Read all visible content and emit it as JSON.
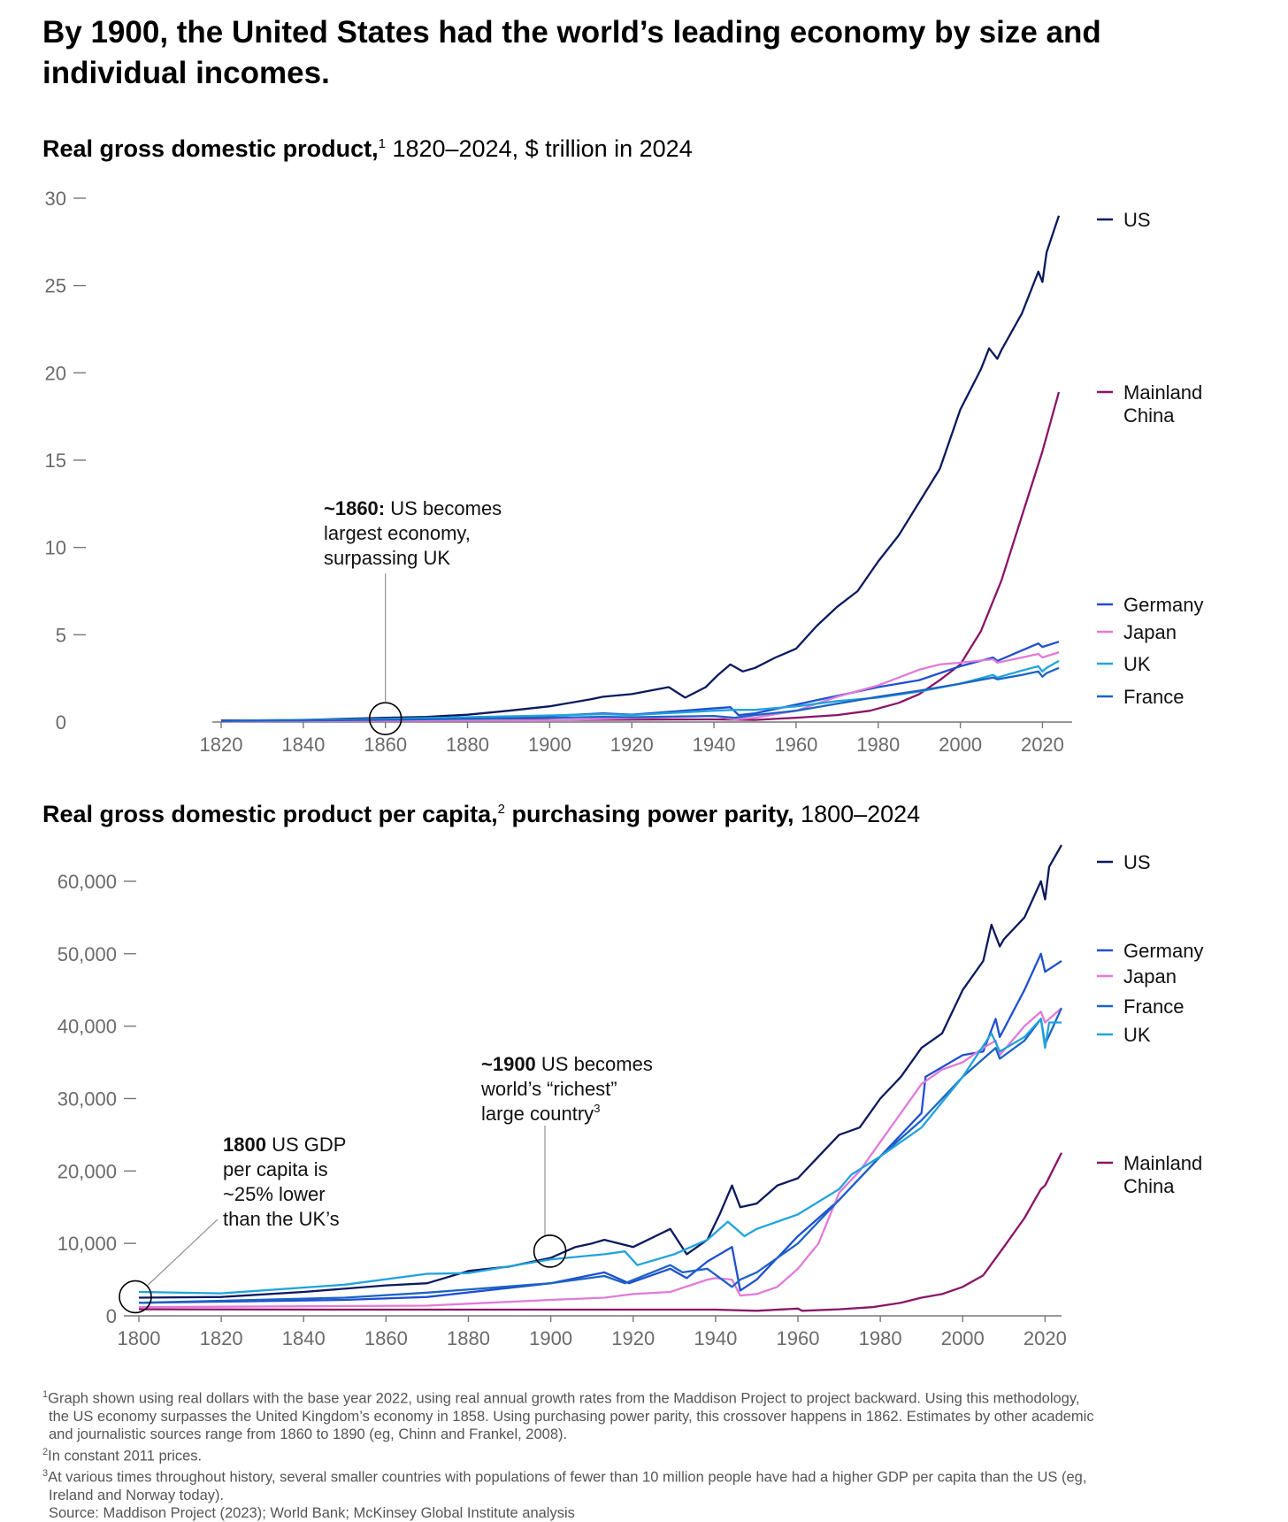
{
  "headline": "By 1900, the United States had the world’s leading economy by size and individual incomes.",
  "colors": {
    "US": "#0b1a5e",
    "Mainland China": "#8a1468",
    "Germany": "#1f4fd1",
    "Japan": "#e27ad9",
    "UK": "#21a3dc",
    "France": "#1b64c4"
  },
  "charts": {
    "gdp": {
      "title_bold": "Real gross domestic product,",
      "title_sup": "1",
      "title_rest": " 1820–2024, $ trillion in 2024"
    },
    "per_capita": {
      "title_bold": "Real gross domestic product per capita,",
      "title_sup": "2",
      "title_bold2": " purchasing power parity,",
      "title_rest": " 1800–2024"
    }
  },
  "chart_data": [
    {
      "type": "line",
      "xlim": [
        1820,
        2024
      ],
      "ylim": [
        0,
        30
      ],
      "x_ticks": [
        1820,
        1840,
        1860,
        1880,
        1900,
        1920,
        1940,
        1960,
        1980,
        2000,
        2020
      ],
      "y_ticks": [
        0,
        5,
        10,
        15,
        20,
        25,
        30
      ],
      "y_tick_labels": [
        "0",
        "5",
        "10",
        "15",
        "20",
        "25",
        "30"
      ],
      "annotation": {
        "bold": "~1860:",
        "text": [
          " US becomes",
          "largest economy,",
          "surpassing UK"
        ],
        "x": 1860,
        "y": 0.1
      },
      "series": [
        {
          "name": "US",
          "label_lines": [
            "US"
          ],
          "x": [
            1820,
            1840,
            1860,
            1870,
            1880,
            1890,
            1900,
            1910,
            1913,
            1920,
            1929,
            1933,
            1938,
            1941,
            1944,
            1947,
            1950,
            1955,
            1960,
            1965,
            1970,
            1975,
            1980,
            1985,
            1990,
            1995,
            2000,
            2005,
            2007,
            2009,
            2010,
            2015,
            2019,
            2020,
            2021,
            2024
          ],
          "y": [
            0.06,
            0.12,
            0.25,
            0.3,
            0.42,
            0.65,
            0.9,
            1.3,
            1.45,
            1.6,
            2.0,
            1.4,
            2.0,
            2.7,
            3.3,
            2.9,
            3.1,
            3.7,
            4.2,
            5.5,
            6.6,
            7.5,
            9.2,
            10.7,
            12.6,
            14.5,
            17.9,
            20.2,
            21.4,
            20.8,
            21.3,
            23.4,
            25.8,
            25.2,
            26.9,
            29.0
          ]
        },
        {
          "name": "Mainland China",
          "label_lines": [
            "Mainland",
            "China"
          ],
          "x": [
            1820,
            1850,
            1900,
            1940,
            1950,
            1960,
            1970,
            1978,
            1985,
            1990,
            1995,
            2000,
            2005,
            2010,
            2015,
            2020,
            2024
          ],
          "y": [
            0.1,
            0.1,
            0.12,
            0.15,
            0.12,
            0.25,
            0.4,
            0.65,
            1.1,
            1.6,
            2.4,
            3.3,
            5.2,
            8.1,
            11.8,
            15.5,
            18.9
          ]
        },
        {
          "name": "Germany",
          "label_lines": [
            "Germany"
          ],
          "x": [
            1820,
            1860,
            1900,
            1913,
            1920,
            1938,
            1944,
            1946,
            1950,
            1960,
            1970,
            1980,
            1990,
            2000,
            2008,
            2009,
            2015,
            2019,
            2020,
            2024
          ],
          "y": [
            0.05,
            0.12,
            0.35,
            0.5,
            0.42,
            0.75,
            0.85,
            0.4,
            0.5,
            1.0,
            1.5,
            2.0,
            2.4,
            3.2,
            3.7,
            3.5,
            4.1,
            4.5,
            4.3,
            4.6
          ]
        },
        {
          "name": "Japan",
          "label_lines": [
            "Japan"
          ],
          "x": [
            1820,
            1900,
            1940,
            1945,
            1950,
            1960,
            1970,
            1980,
            1990,
            1995,
            2000,
            2008,
            2009,
            2015,
            2019,
            2020,
            2024
          ],
          "y": [
            0.04,
            0.1,
            0.35,
            0.15,
            0.25,
            0.65,
            1.45,
            2.1,
            3.0,
            3.3,
            3.4,
            3.6,
            3.4,
            3.7,
            3.9,
            3.7,
            4.0
          ]
        },
        {
          "name": "UK",
          "label_lines": [
            "UK"
          ],
          "x": [
            1820,
            1860,
            1900,
            1913,
            1920,
            1940,
            1945,
            1950,
            1960,
            1970,
            1980,
            1990,
            2000,
            2008,
            2009,
            2015,
            2019,
            2020,
            2021,
            2024
          ],
          "y": [
            0.07,
            0.18,
            0.38,
            0.45,
            0.4,
            0.65,
            0.7,
            0.7,
            0.9,
            1.2,
            1.4,
            1.75,
            2.2,
            2.7,
            2.55,
            2.95,
            3.2,
            2.9,
            3.1,
            3.5
          ]
        },
        {
          "name": "France",
          "label_lines": [
            "France"
          ],
          "x": [
            1820,
            1860,
            1900,
            1913,
            1920,
            1940,
            1945,
            1950,
            1960,
            1970,
            1980,
            1990,
            2000,
            2008,
            2009,
            2015,
            2019,
            2020,
            2021,
            2024
          ],
          "y": [
            0.06,
            0.13,
            0.25,
            0.3,
            0.28,
            0.35,
            0.25,
            0.4,
            0.65,
            1.05,
            1.45,
            1.8,
            2.2,
            2.55,
            2.45,
            2.7,
            2.9,
            2.6,
            2.8,
            3.1
          ]
        }
      ]
    },
    {
      "type": "line",
      "xlim": [
        1800,
        2024
      ],
      "ylim": [
        0,
        65000
      ],
      "x_ticks": [
        1800,
        1820,
        1840,
        1860,
        1880,
        1900,
        1920,
        1940,
        1960,
        1980,
        2000,
        2020
      ],
      "y_ticks": [
        0,
        10000,
        20000,
        30000,
        40000,
        50000,
        60000
      ],
      "y_tick_labels": [
        "0",
        "10,000",
        "20,000",
        "30,000",
        "40,000",
        "50,000",
        "60,000"
      ],
      "annotations": [
        {
          "bold": "1800",
          "text": [
            " US GDP",
            "per capita is",
            "~25% lower",
            "than the UK’s"
          ],
          "x": 1800,
          "y": 3000
        },
        {
          "bold": "~1900",
          "text": [
            " US becomes",
            "world’s “richest”",
            "large country"
          ],
          "sup": "3",
          "x": 1900,
          "y": 8800
        }
      ],
      "series": [
        {
          "name": "US",
          "label_lines": [
            "US"
          ],
          "x": [
            1800,
            1820,
            1840,
            1860,
            1870,
            1880,
            1890,
            1900,
            1906,
            1910,
            1913,
            1920,
            1929,
            1933,
            1938,
            1941,
            1944,
            1946,
            1950,
            1955,
            1960,
            1965,
            1970,
            1975,
            1980,
            1985,
            1990,
            1995,
            2000,
            2005,
            2007,
            2009,
            2010,
            2015,
            2019,
            2020,
            2021,
            2024
          ],
          "y": [
            2500,
            2600,
            3300,
            4200,
            4500,
            6200,
            6800,
            8000,
            9500,
            10000,
            10500,
            9500,
            12000,
            8500,
            10500,
            14000,
            18000,
            15000,
            15500,
            18000,
            19000,
            22000,
            25000,
            26000,
            30000,
            33000,
            37000,
            39000,
            45000,
            49000,
            54000,
            51000,
            52000,
            55000,
            60000,
            57500,
            62000,
            65000
          ]
        },
        {
          "name": "Germany",
          "label_lines": [
            "Germany"
          ],
          "x": [
            1800,
            1850,
            1870,
            1900,
            1913,
            1919,
            1929,
            1933,
            1938,
            1944,
            1946,
            1950,
            1955,
            1960,
            1970,
            1980,
            1990,
            1991,
            2000,
            2005,
            2008,
            2009,
            2015,
            2019,
            2020,
            2024
          ],
          "y": [
            1800,
            2200,
            2600,
            4500,
            6000,
            4500,
            6500,
            5200,
            7500,
            9500,
            3500,
            5000,
            8000,
            11000,
            16000,
            22000,
            28000,
            33000,
            36000,
            36500,
            41000,
            38500,
            45000,
            50000,
            47500,
            49000
          ]
        },
        {
          "name": "Japan",
          "label_lines": [
            "Japan"
          ],
          "x": [
            1800,
            1870,
            1900,
            1913,
            1920,
            1929,
            1938,
            1940,
            1944,
            1946,
            1950,
            1955,
            1960,
            1965,
            1970,
            1975,
            1980,
            1990,
            1995,
            2000,
            2005,
            2008,
            2009,
            2015,
            2019,
            2020,
            2024
          ],
          "y": [
            1200,
            1400,
            2200,
            2500,
            3000,
            3300,
            5000,
            5200,
            5000,
            2800,
            3000,
            4000,
            6500,
            10000,
            17000,
            20000,
            24000,
            32000,
            34000,
            35000,
            37000,
            38000,
            36000,
            40000,
            42000,
            40500,
            42500
          ]
        },
        {
          "name": "France",
          "label_lines": [
            "France"
          ],
          "x": [
            1800,
            1850,
            1870,
            1900,
            1913,
            1918,
            1929,
            1932,
            1938,
            1944,
            1946,
            1950,
            1960,
            1970,
            1980,
            1990,
            2000,
            2008,
            2009,
            2015,
            2019,
            2020,
            2024
          ],
          "y": [
            1800,
            2500,
            3200,
            4500,
            5500,
            4500,
            7000,
            6000,
            6500,
            4000,
            5000,
            6000,
            10000,
            16000,
            22000,
            27000,
            33000,
            37000,
            35500,
            38000,
            41000,
            37500,
            42500
          ]
        },
        {
          "name": "UK",
          "label_lines": [
            "UK"
          ],
          "x": [
            1800,
            1820,
            1850,
            1870,
            1880,
            1900,
            1913,
            1918,
            1921,
            1930,
            1938,
            1943,
            1945,
            1947,
            1950,
            1960,
            1970,
            1973,
            1980,
            1990,
            2000,
            2007,
            2009,
            2015,
            2019,
            2020,
            2021,
            2024
          ],
          "y": [
            3300,
            3100,
            4300,
            5800,
            5900,
            7800,
            8500,
            8900,
            7000,
            8500,
            10500,
            13000,
            12000,
            11000,
            12000,
            14000,
            17500,
            19500,
            22000,
            26000,
            33000,
            39000,
            36500,
            38500,
            41000,
            37000,
            40500,
            40500
          ]
        },
        {
          "name": "Mainland China",
          "label_lines": [
            "Mainland",
            "China"
          ],
          "x": [
            1800,
            1850,
            1900,
            1940,
            1950,
            1960,
            1961,
            1970,
            1978,
            1985,
            1990,
            1995,
            2000,
            2005,
            2010,
            2015,
            2019,
            2020,
            2024
          ],
          "y": [
            900,
            850,
            850,
            850,
            700,
            1000,
            700,
            900,
            1200,
            1800,
            2500,
            3000,
            4000,
            5600,
            9500,
            13500,
            17500,
            18000,
            22500
          ]
        }
      ]
    }
  ],
  "footnotes": [
    {
      "sup": "1",
      "lines": [
        "Graph shown using real dollars with the base year 2022, using real annual growth rates from the Maddison Project to project backward. Using this methodology,",
        "the US economy surpasses the United Kingdom’s economy in 1858. Using purchasing power parity, this crossover happens in 1862. Estimates by other academic",
        "and journalistic sources range from 1860 to 1890 (eg, Chinn and Frankel, 2008)."
      ]
    },
    {
      "sup": "2",
      "lines": [
        "In constant 2011 prices."
      ]
    },
    {
      "sup": "3",
      "lines": [
        "At various times throughout history, several smaller countries with populations of fewer than 10 million people have had a higher GDP per capita than the US (eg,",
        "Ireland and Norway today)."
      ]
    }
  ],
  "source": "Source: Maddison Project (2023); World Bank; McKinsey Global Institute analysis"
}
